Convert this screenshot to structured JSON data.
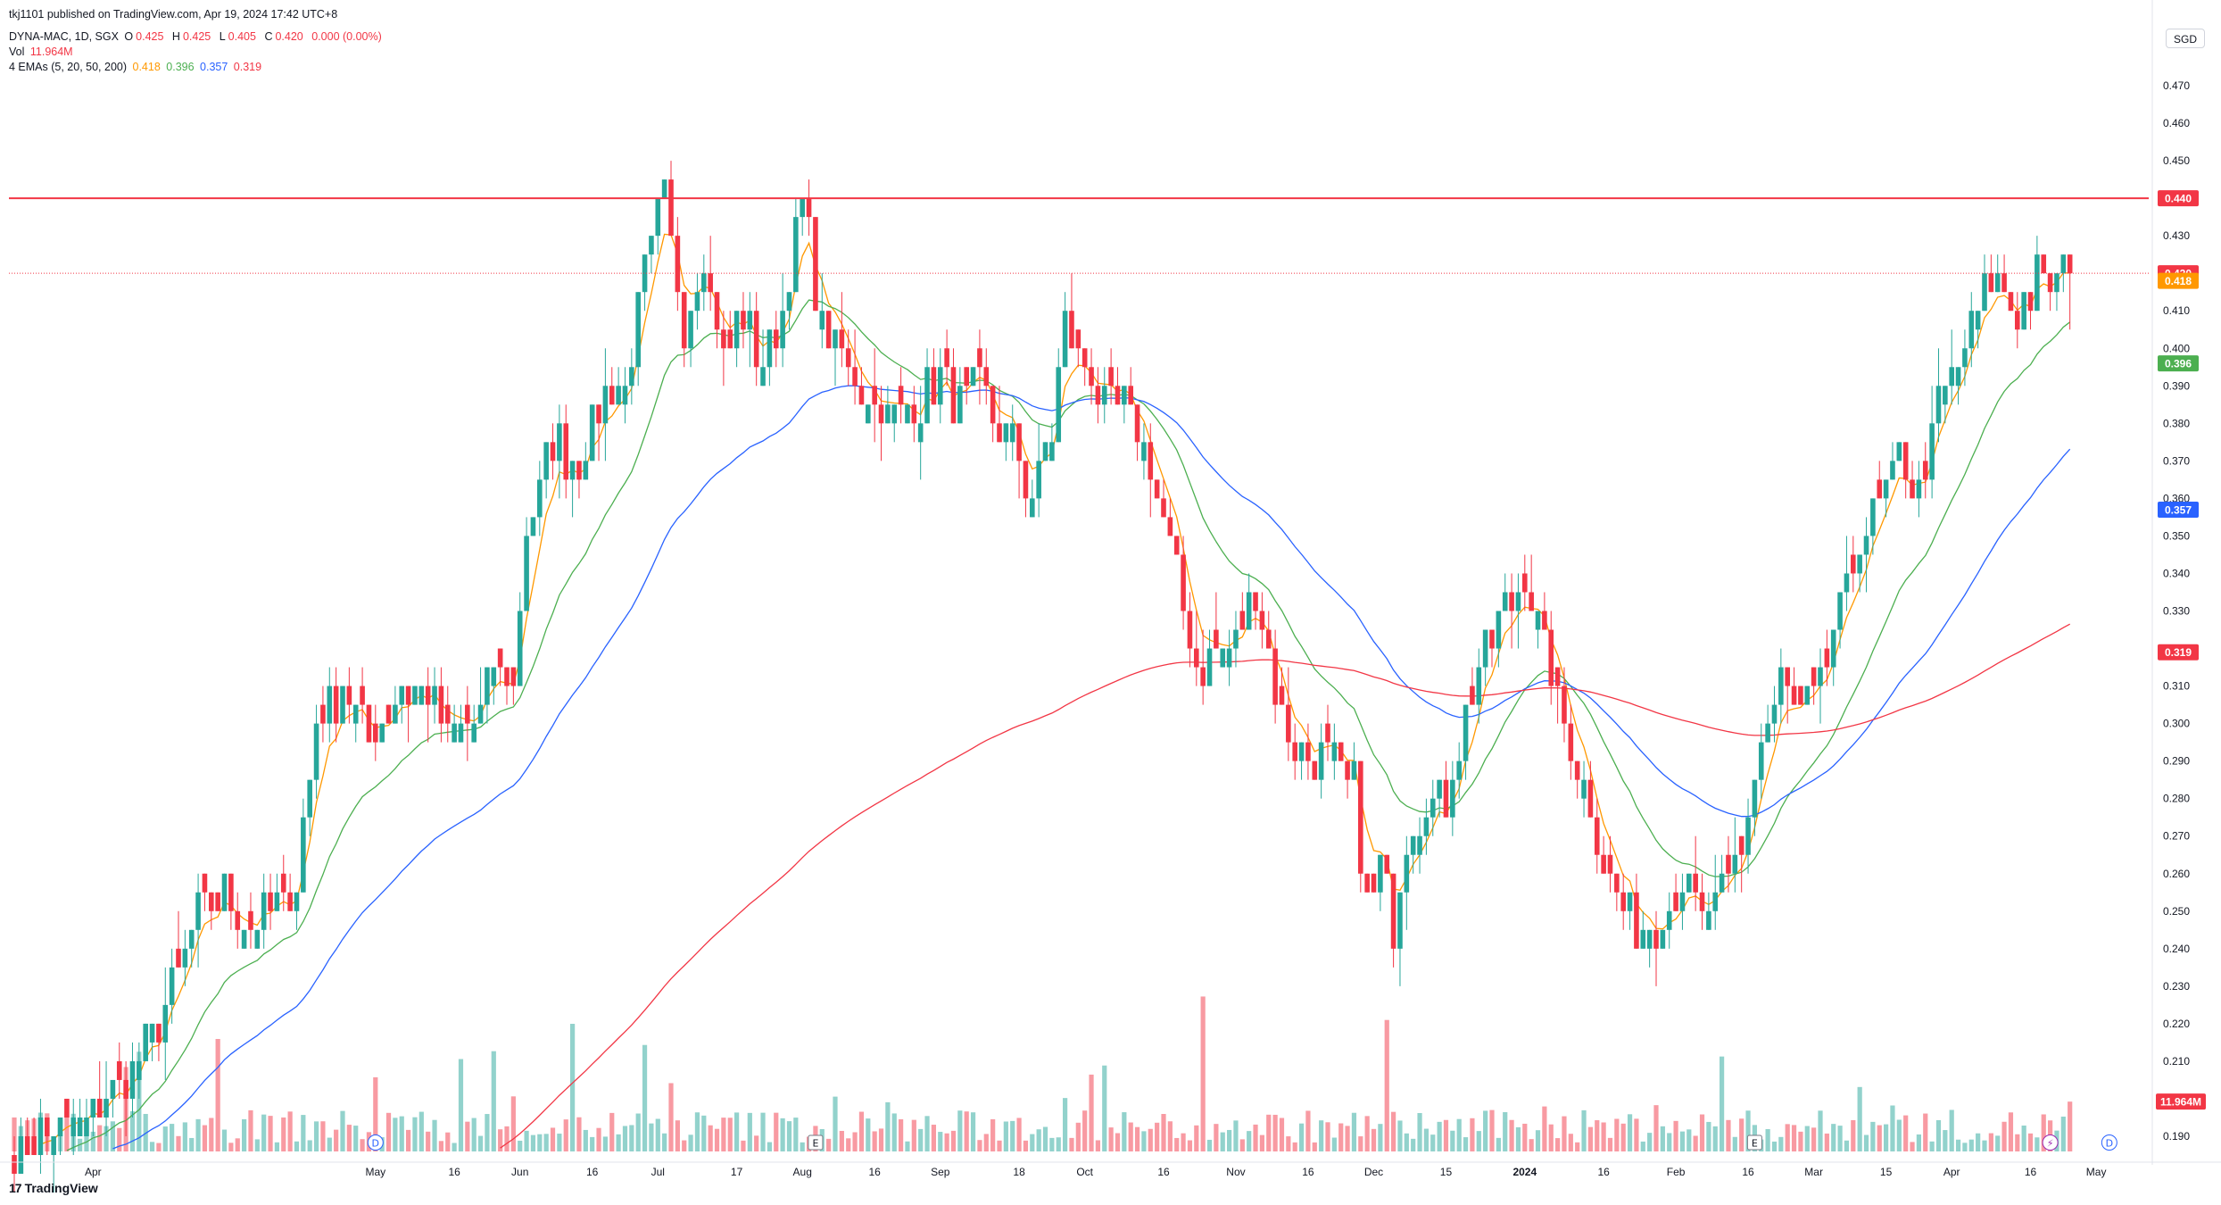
{
  "header": {
    "published": "tkj1101 published on TradingView.com, Apr 19, 2024 17:42 UTC+8",
    "symbol": "DYNA-MAC, 1D, SGX",
    "ohlc": {
      "o_label": "O",
      "o": "0.425",
      "h_label": "H",
      "h": "0.425",
      "l_label": "L",
      "l": "0.405",
      "c_label": "C",
      "c": "0.420",
      "change": "0.000 (0.00%)"
    },
    "volume_label": "Vol",
    "volume": "11.964M",
    "ema_label": "4 EMAs (5, 20, 50, 200)",
    "ema_values": {
      "ema5": "0.418",
      "ema20": "0.396",
      "ema50": "0.357",
      "ema200": "0.319"
    }
  },
  "currency": "SGD",
  "logo": {
    "mark": "17",
    "text": "TradingView"
  },
  "colors": {
    "up": "#26a69a",
    "down": "#f23645",
    "ema5": "#ff9800",
    "ema20": "#4caf50",
    "ema50": "#2962ff",
    "ema200": "#f23645",
    "resistance": "#f23645"
  },
  "chart_data": {
    "type": "candlestick",
    "price_axis": {
      "ticks": [
        "0.470",
        "0.460",
        "0.450",
        "0.440",
        "0.430",
        "0.420",
        "0.410",
        "0.400",
        "0.390",
        "0.380",
        "0.370",
        "0.360",
        "0.350",
        "0.340",
        "0.330",
        "0.320",
        "0.310",
        "0.300",
        "0.290",
        "0.280",
        "0.270",
        "0.260",
        "0.250",
        "0.240",
        "0.230",
        "0.220",
        "0.210",
        "0.200",
        "0.190"
      ],
      "range": [
        0.187,
        0.483
      ]
    },
    "time_axis": {
      "labels": [
        "Apr",
        "May",
        "16",
        "Jun",
        "16",
        "Jul",
        "17",
        "Aug",
        "16",
        "Sep",
        "18",
        "Oct",
        "16",
        "Nov",
        "16",
        "Dec",
        "15",
        "2024",
        "16",
        "Feb",
        "16",
        "Mar",
        "15",
        "Apr",
        "16",
        "May"
      ],
      "label_bar_index": [
        12,
        55,
        67,
        77,
        88,
        98,
        110,
        120,
        131,
        141,
        153,
        163,
        175,
        186,
        197,
        207,
        218,
        230,
        242,
        253,
        264,
        274,
        285,
        295,
        307,
        317
      ],
      "bar_count": 314
    },
    "resistance_line": {
      "price": 0.44,
      "label": "0.440"
    },
    "last_price": {
      "price": 0.42,
      "label": "0.420"
    },
    "price_labels": [
      {
        "name": "last",
        "price": 0.42,
        "text": "0.420",
        "color": "#f23645"
      },
      {
        "name": "ema5",
        "price": 0.418,
        "text": "0.418",
        "color": "#ff9800"
      },
      {
        "name": "ema20",
        "price": 0.396,
        "text": "0.396",
        "color": "#4caf50"
      },
      {
        "name": "ema50",
        "price": 0.357,
        "text": "0.357",
        "color": "#2962ff"
      },
      {
        "name": "ema200",
        "price": 0.319,
        "text": "0.319",
        "color": "#f23645"
      }
    ],
    "volume_label": {
      "text": "11.964M"
    },
    "events": [
      {
        "type": "dividend",
        "text": "D",
        "bar": 55
      },
      {
        "type": "earnings",
        "text": "E",
        "bar": 122
      },
      {
        "type": "earnings",
        "text": "E",
        "bar": 265
      },
      {
        "type": "split",
        "text": "⚡",
        "bar": 310
      },
      {
        "type": "dividend",
        "text": "D",
        "bar": 319
      }
    ],
    "close_keypoints": [
      [
        0,
        0.185
      ],
      [
        4,
        0.19
      ],
      [
        8,
        0.191
      ],
      [
        12,
        0.196
      ],
      [
        16,
        0.205
      ],
      [
        20,
        0.215
      ],
      [
        24,
        0.228
      ],
      [
        28,
        0.25
      ],
      [
        32,
        0.255
      ],
      [
        36,
        0.248
      ],
      [
        40,
        0.25
      ],
      [
        43,
        0.258
      ],
      [
        46,
        0.3
      ],
      [
        50,
        0.31
      ],
      [
        54,
        0.296
      ],
      [
        58,
        0.308
      ],
      [
        62,
        0.31
      ],
      [
        66,
        0.296
      ],
      [
        70,
        0.298
      ],
      [
        73,
        0.315
      ],
      [
        76,
        0.31
      ],
      [
        78,
        0.35
      ],
      [
        82,
        0.375
      ],
      [
        86,
        0.37
      ],
      [
        90,
        0.388
      ],
      [
        93,
        0.39
      ],
      [
        96,
        0.42
      ],
      [
        99,
        0.44
      ],
      [
        102,
        0.405
      ],
      [
        105,
        0.425
      ],
      [
        108,
        0.398
      ],
      [
        111,
        0.41
      ],
      [
        114,
        0.395
      ],
      [
        117,
        0.408
      ],
      [
        120,
        0.44
      ],
      [
        123,
        0.405
      ],
      [
        126,
        0.398
      ],
      [
        129,
        0.388
      ],
      [
        132,
        0.385
      ],
      [
        135,
        0.382
      ],
      [
        138,
        0.385
      ],
      [
        141,
        0.393
      ],
      [
        144,
        0.385
      ],
      [
        147,
        0.39
      ],
      [
        150,
        0.38
      ],
      [
        153,
        0.37
      ],
      [
        155,
        0.36
      ],
      [
        158,
        0.378
      ],
      [
        160,
        0.405
      ],
      [
        163,
        0.395
      ],
      [
        166,
        0.385
      ],
      [
        169,
        0.385
      ],
      [
        172,
        0.375
      ],
      [
        174,
        0.36
      ],
      [
        177,
        0.34
      ],
      [
        180,
        0.315
      ],
      [
        183,
        0.318
      ],
      [
        186,
        0.32
      ],
      [
        189,
        0.336
      ],
      [
        192,
        0.308
      ],
      [
        195,
        0.295
      ],
      [
        198,
        0.29
      ],
      [
        201,
        0.288
      ],
      [
        204,
        0.282
      ],
      [
        206,
        0.25
      ],
      [
        208,
        0.262
      ],
      [
        210,
        0.245
      ],
      [
        212,
        0.27
      ],
      [
        215,
        0.28
      ],
      [
        218,
        0.278
      ],
      [
        221,
        0.305
      ],
      [
        224,
        0.32
      ],
      [
        227,
        0.33
      ],
      [
        230,
        0.34
      ],
      [
        233,
        0.318
      ],
      [
        236,
        0.3
      ],
      [
        239,
        0.285
      ],
      [
        242,
        0.265
      ],
      [
        245,
        0.25
      ],
      [
        248,
        0.245
      ],
      [
        251,
        0.25
      ],
      [
        254,
        0.258
      ],
      [
        257,
        0.245
      ],
      [
        260,
        0.255
      ],
      [
        263,
        0.265
      ],
      [
        266,
        0.295
      ],
      [
        269,
        0.31
      ],
      [
        272,
        0.302
      ],
      [
        275,
        0.31
      ],
      [
        278,
        0.33
      ],
      [
        281,
        0.35
      ],
      [
        284,
        0.355
      ],
      [
        287,
        0.37
      ],
      [
        290,
        0.36
      ],
      [
        293,
        0.385
      ],
      [
        296,
        0.395
      ],
      [
        299,
        0.41
      ],
      [
        302,
        0.42
      ],
      [
        305,
        0.41
      ],
      [
        308,
        0.418
      ],
      [
        313,
        0.42
      ]
    ],
    "volume_axis_max_millions": 60,
    "last_volume_millions": 11.964
  }
}
